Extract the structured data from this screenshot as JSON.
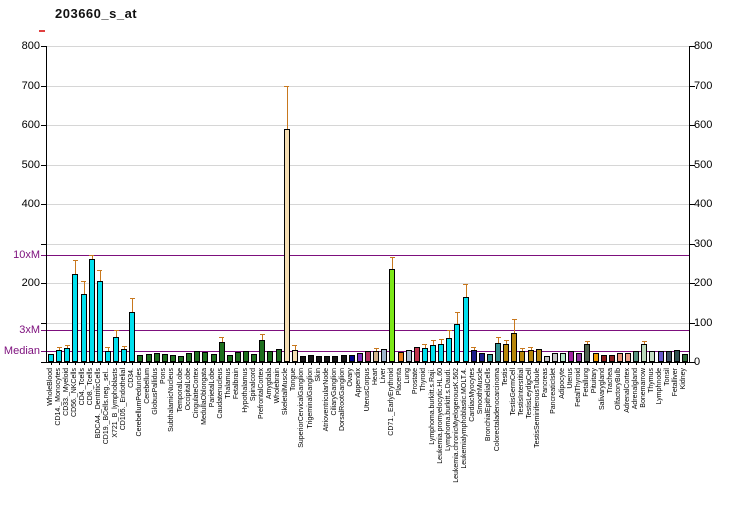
{
  "title": "203660_s_at",
  "chart_data": {
    "type": "bar",
    "title": "203660_s_at",
    "ylim": [
      0,
      800
    ],
    "grid": true,
    "grid_values": [
      100,
      200,
      300,
      400,
      500,
      600,
      700,
      800
    ],
    "yticks_left_labeled": [
      {
        "value": 800,
        "label": "800"
      },
      {
        "value": 700,
        "label": "700"
      },
      {
        "value": 600,
        "label": "600"
      },
      {
        "value": 500,
        "label": "500"
      },
      {
        "value": 400,
        "label": "400"
      },
      {
        "value": 200,
        "label": "200"
      }
    ],
    "yticks_right": [
      {
        "value": 0,
        "label": "0"
      },
      {
        "value": 100,
        "label": "100"
      },
      {
        "value": 200,
        "label": "200"
      },
      {
        "value": 300,
        "label": "300"
      },
      {
        "value": 400,
        "label": "400"
      },
      {
        "value": 500,
        "label": "500"
      },
      {
        "value": 600,
        "label": "600"
      },
      {
        "value": 700,
        "label": "700"
      },
      {
        "value": 800,
        "label": "800"
      }
    ],
    "reference_lines": [
      {
        "label": "10xM",
        "value": 270,
        "color": "#7d0f7d"
      },
      {
        "label": "3xM",
        "value": 81,
        "color": "#7d0f7d"
      },
      {
        "label": "Median",
        "value": 27,
        "color": "#7d0f7d"
      }
    ],
    "error_bar_color": "#c8781e",
    "bar_border_color": "#000000",
    "categories": [
      "WholeBlood",
      "CD14._Monocytes",
      "CD33._Myeloid",
      "CD56._NKCells",
      "CD4._Tcells",
      "CD8._Tcells",
      "BDCA4._DentriticCells",
      "CD19._BCells.neg._sel..",
      "X721_B_lymphoblasts",
      "CD105._Endothelial",
      "CD34.",
      "CerebellumPeduncles",
      "Cerebellum",
      "GlobusPallidus",
      "Pons",
      "SubthalamicNucleus",
      "TemporalLobe",
      "OccipitalLobe",
      "CingulateCortex",
      "MedullaOblongata",
      "ParietalLobe",
      "Caudatenucleus",
      "Thalamus",
      "Fetalbrain",
      "Hypothalamus",
      "Spinalcord",
      "PrefrontalCortex",
      "Amygdala",
      "Wholebrain",
      "SkeletalMuscle",
      "Tongue",
      "SuperiorCervicalGanglion",
      "TrigeminalGanglion",
      "Skin",
      "AtrioventricularNode",
      "CiliaryGanglion",
      "DorsalRootGanglion",
      "Ovary",
      "Appendix",
      "UterusCorpus",
      "Heart",
      "Liver",
      "CD71._EarlyErythroid",
      "Placenta",
      "Lung",
      "Prostate",
      "Thyroid",
      "Lymphoma.burkitt.s.Raji.",
      "Leukemia.promyelocytic.HL.60",
      "Lymphoma.burkitt.s.Daudi.",
      "Leukemia.chronicMyelogenousK.562",
      "Leukemialymphoblastic.MOLT.4.",
      "CardiacMyocytes",
      "SmoothMuscle",
      "BronchialEpithelialCells",
      "Colorectaladenocarcinoma",
      "Testis",
      "TestisGermCell",
      "TestisInterstitial",
      "TestisLeydigCell",
      "TestisSeminiferousTubule",
      "Pancreas",
      "PancreaticIslet",
      "Adipocyte",
      "Uterus",
      "FetalThyroid",
      "Fetallung",
      "Pituitary",
      "Salivarygland",
      "Trachea",
      "OlfactoryBulb",
      "AdrenalCortex",
      "Adrenalgland",
      "Bonemarrow",
      "Thymus",
      "Lymphnode",
      "Tonsil",
      "Fetalliver",
      "Kidney"
    ],
    "values": [
      20,
      31,
      36,
      222,
      173,
      260,
      205,
      28,
      64,
      33,
      127,
      18,
      20,
      24,
      20,
      18,
      16,
      22,
      28,
      25,
      20,
      50,
      18,
      26,
      28,
      20,
      55,
      28,
      34,
      590,
      30,
      16,
      18,
      14,
      16,
      16,
      18,
      18,
      22,
      28,
      28,
      33,
      235,
      26,
      30,
      38,
      36,
      43,
      45,
      61,
      95,
      165,
      30,
      22,
      20,
      47,
      46,
      73,
      28,
      30,
      32,
      16,
      24,
      24,
      28,
      24,
      45,
      22,
      18,
      17,
      24,
      24,
      27,
      45,
      29,
      27,
      28,
      30,
      21
    ],
    "errors": [
      null,
      38,
      44,
      258,
      205,
      272,
      232,
      39,
      81,
      40,
      163,
      null,
      null,
      null,
      null,
      null,
      null,
      null,
      null,
      null,
      null,
      64,
      null,
      null,
      null,
      null,
      70,
      null,
      null,
      700,
      42,
      null,
      null,
      null,
      null,
      null,
      null,
      null,
      null,
      null,
      36,
      null,
      266,
      null,
      null,
      null,
      46,
      56,
      58,
      80,
      127,
      197,
      38,
      null,
      null,
      63,
      56,
      110,
      35,
      38,
      null,
      null,
      null,
      null,
      null,
      null,
      52,
      null,
      null,
      null,
      null,
      null,
      null,
      53,
      null,
      null,
      null,
      null,
      null
    ],
    "colors": [
      "#00e0ee",
      "#00e0ee",
      "#00e0ee",
      "#00e0ee",
      "#00e0ee",
      "#00e0ee",
      "#00e0ee",
      "#00e0ee",
      "#00e0ee",
      "#00e0ee",
      "#00e0ee",
      "#1e701e",
      "#1e701e",
      "#1e701e",
      "#1e701e",
      "#1e701e",
      "#1e701e",
      "#1e701e",
      "#1e701e",
      "#1e701e",
      "#1e701e",
      "#1e701e",
      "#1e701e",
      "#1e701e",
      "#1e701e",
      "#1e701e",
      "#1e701e",
      "#1e701e",
      "#1e701e",
      "#f5deb3",
      "#f5deb3",
      "#141414",
      "#141414",
      "#141414",
      "#141414",
      "#141414",
      "#141414",
      "#00008b",
      "#7b2fbe",
      "#b03060",
      "#d2b48c",
      "#9fb6cd",
      "#7ce817",
      "#e87d1e",
      "#a9bcd0",
      "#c2344c",
      "#00e0ee",
      "#00e0ee",
      "#00e0ee",
      "#00e0ee",
      "#00e0ee",
      "#00e0ee",
      "#1c1c8b",
      "#1c1c8b",
      "#2f9090",
      "#2f9090",
      "#b8860b",
      "#b8860b",
      "#b8860b",
      "#b8860b",
      "#b8860b",
      "#c6c6c6",
      "#c6c6c6",
      "#b4e8c8",
      "#a020a0",
      "#8e2f9e",
      "#4f634f",
      "#ee9a00",
      "#8b1a1a",
      "#8b2222",
      "#e9967a",
      "#eda088",
      "#55917f",
      "#bcd9bc",
      "#c4dfc4",
      "#6959cd",
      "#3e5063",
      "#2f4f4f",
      "#2f6b3a"
    ]
  }
}
